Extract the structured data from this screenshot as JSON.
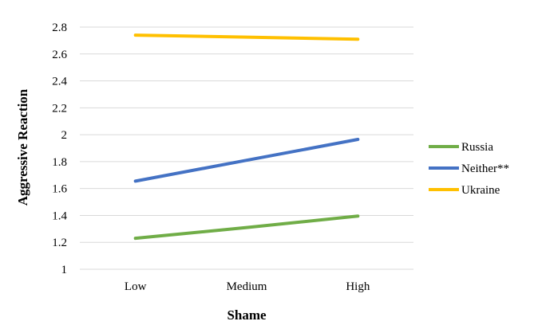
{
  "chart_data": {
    "type": "line",
    "categories": [
      "Low",
      "Medium",
      "High"
    ],
    "series": [
      {
        "name": "Russia",
        "values": [
          1.23,
          1.31,
          1.395
        ],
        "color": "#70ad47"
      },
      {
        "name": "Neither**",
        "values": [
          1.655,
          1.81,
          1.965
        ],
        "color": "#4472c4"
      },
      {
        "name": "Ukraine",
        "values": [
          2.74,
          2.725,
          2.71
        ],
        "color": "#ffc000"
      }
    ],
    "title": "",
    "xlabel": "Shame",
    "ylabel": "Aggressive Reaction",
    "ylim": [
      1,
      2.8
    ],
    "yticks": [
      1,
      1.2,
      1.4,
      1.6,
      1.8,
      2,
      2.2,
      2.4,
      2.6,
      2.8
    ],
    "ytick_labels": [
      "1",
      "1.2",
      "1.4",
      "1.6",
      "1.8",
      "2",
      "2.2",
      "2.4",
      "2.6",
      "2.8"
    ],
    "grid": "horizontal",
    "gridline_color": "#d9d9d9",
    "legend_position": "right"
  }
}
